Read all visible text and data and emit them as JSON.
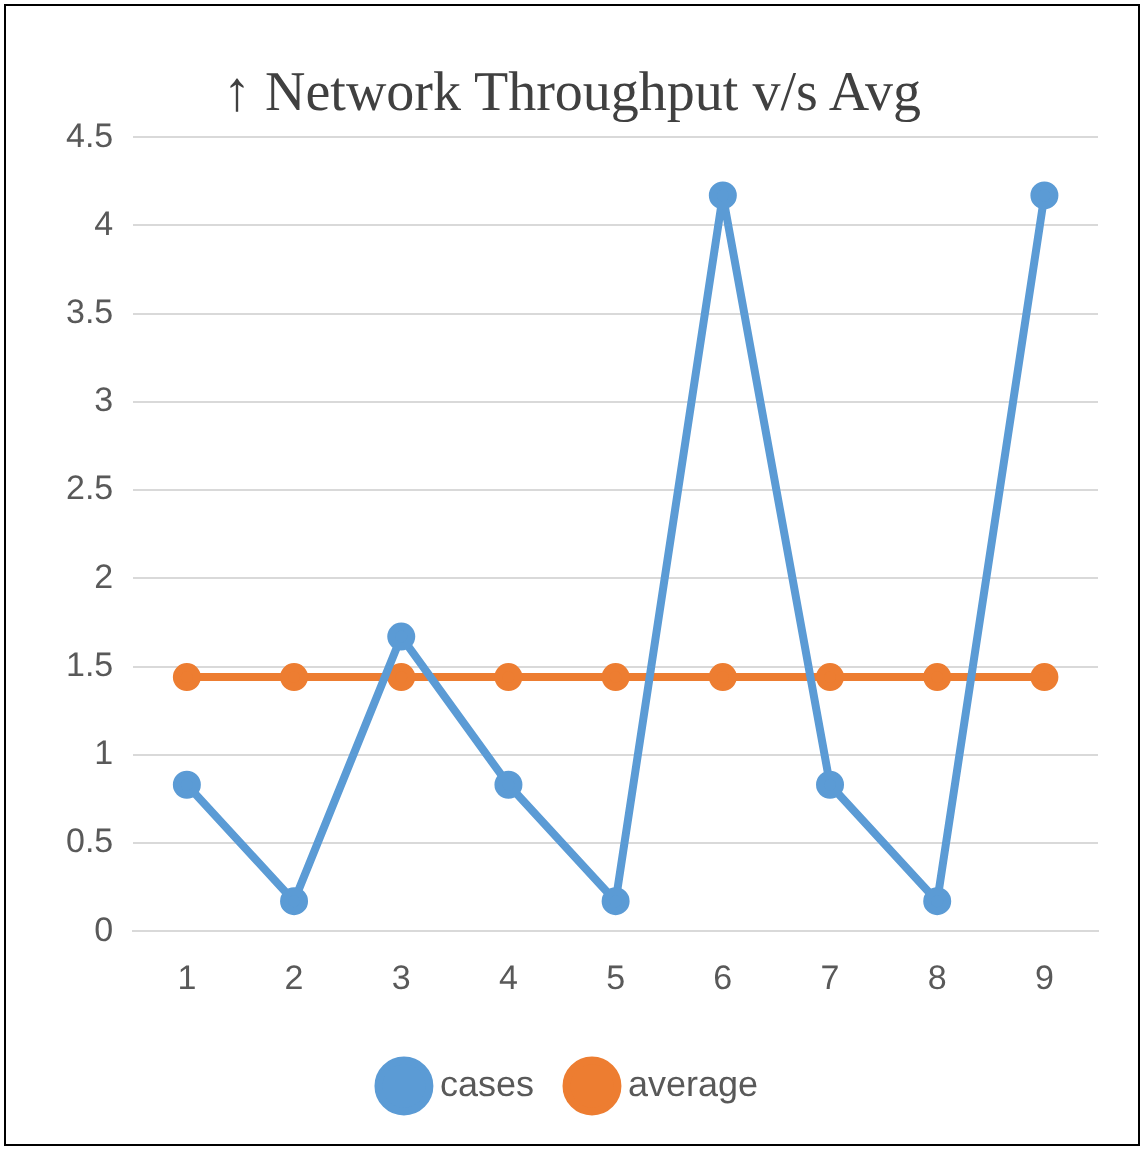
{
  "chart_data": {
    "type": "line",
    "title": "↑ Network Throughput v/s Avg",
    "categories": [
      "1",
      "2",
      "3",
      "4",
      "5",
      "6",
      "7",
      "8",
      "9"
    ],
    "series": [
      {
        "name": "cases",
        "color": "#5b9bd5",
        "values": [
          0.83,
          0.17,
          1.67,
          0.83,
          0.17,
          4.17,
          0.83,
          0.17,
          4.17
        ]
      },
      {
        "name": "average",
        "color": "#ed7d31",
        "values": [
          1.44,
          1.44,
          1.44,
          1.44,
          1.44,
          1.44,
          1.44,
          1.44,
          1.44
        ]
      }
    ],
    "ylim": [
      0,
      4.5
    ],
    "yticks": [
      0,
      0.5,
      1,
      1.5,
      2,
      2.5,
      3,
      3.5,
      4,
      4.5
    ],
    "grid": "y",
    "legend": "bottom",
    "marker": "circle",
    "line_style": "solid"
  }
}
